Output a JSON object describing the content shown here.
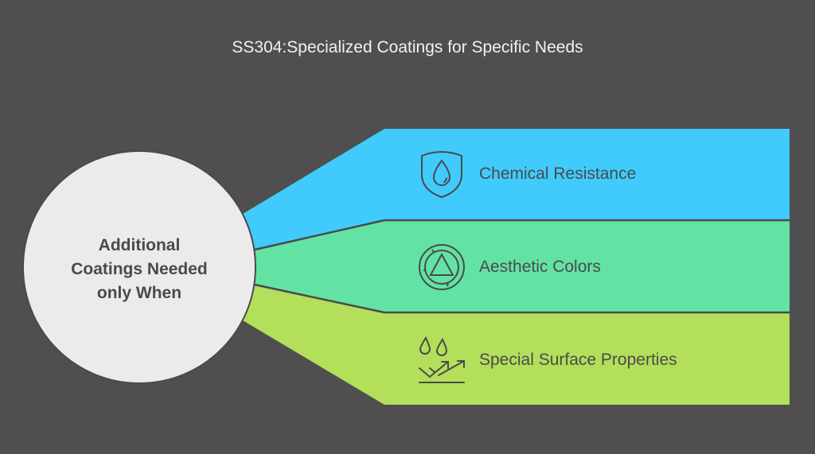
{
  "title": "SS304:Specialized Coatings for Specific Needs",
  "center": {
    "text_lines": [
      "Additional",
      "Coatings Needed",
      "only When"
    ],
    "color": "#ebebeb"
  },
  "items": [
    {
      "label": "Chemical Resistance",
      "icon": "shield-water-drop-icon",
      "color": "#40cbfc"
    },
    {
      "label": "Aesthetic Colors",
      "icon": "color-wheel-triangle-icon",
      "color": "#62e3a3"
    },
    {
      "label": "Special Surface Properties",
      "icon": "water-drops-arrows-icon",
      "color": "#b3df5a"
    }
  ]
}
